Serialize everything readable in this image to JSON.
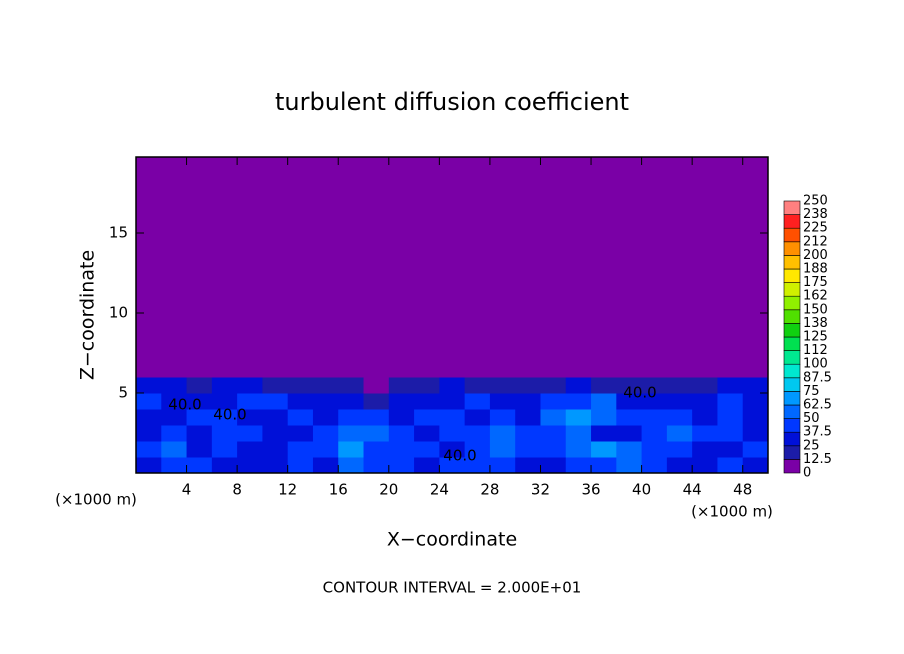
{
  "chart_data": {
    "type": "heatmap",
    "title": "turbulent diffusion coefficient",
    "x_label": "X−coordinate",
    "y_label": "Z−coordinate",
    "x_unit": "(×1000 m)",
    "y_unit": "(×1000 m)",
    "footer": "CONTOUR INTERVAL = 2.000E+01",
    "contour_labels": [
      "40.0",
      "40.0",
      "40.0",
      "40.0"
    ],
    "xlim": [
      0,
      50
    ],
    "ylim": [
      0,
      19.75
    ],
    "xticks": [
      4,
      8,
      12,
      16,
      20,
      24,
      28,
      32,
      36,
      40,
      44,
      48
    ],
    "yticks": [
      5,
      10,
      15
    ],
    "x_edges": [
      0,
      2,
      4,
      6,
      8,
      10,
      12,
      14,
      16,
      18,
      20,
      22,
      24,
      26,
      28,
      30,
      32,
      34,
      36,
      38,
      40,
      42,
      44,
      46,
      48,
      50
    ],
    "z_edges": [
      0,
      1,
      2,
      3,
      4,
      5,
      6,
      19.75
    ],
    "values": [
      [
        30,
        45,
        40,
        35,
        30,
        35,
        40,
        30,
        60,
        45,
        40,
        35,
        40,
        45,
        40,
        35,
        30,
        40,
        45,
        50,
        40,
        35,
        30,
        40,
        35
      ],
      [
        40,
        60,
        35,
        40,
        35,
        30,
        45,
        40,
        65,
        40,
        45,
        40,
        35,
        40,
        60,
        45,
        40,
        55,
        65,
        60,
        45,
        40,
        35,
        30,
        40
      ],
      [
        35,
        40,
        30,
        45,
        40,
        35,
        30,
        45,
        60,
        50,
        40,
        35,
        40,
        45,
        50,
        40,
        45,
        60,
        30,
        35,
        40,
        55,
        45,
        40,
        35
      ],
      [
        30,
        35,
        45,
        40,
        35,
        30,
        40,
        35,
        40,
        45,
        35,
        40,
        45,
        30,
        40,
        35,
        50,
        65,
        60,
        45,
        40,
        45,
        35,
        40,
        30
      ],
      [
        40,
        35,
        30,
        35,
        40,
        45,
        30,
        30,
        35,
        20,
        30,
        35,
        30,
        40,
        35,
        30,
        40,
        45,
        55,
        35,
        30,
        30,
        35,
        40,
        35
      ],
      [
        30,
        25,
        20,
        30,
        25,
        20,
        20,
        15,
        20,
        10,
        15,
        20,
        25,
        20,
        15,
        15,
        20,
        25,
        20,
        15,
        20,
        15,
        20,
        25,
        30
      ],
      [
        0,
        0,
        0,
        0,
        0,
        0,
        0,
        0,
        0,
        0,
        0,
        0,
        0,
        0,
        0,
        0,
        0,
        0,
        0,
        0,
        0,
        0,
        0,
        0,
        0
      ]
    ],
    "colorbar": {
      "levels": [
        0,
        12.5,
        25,
        37.5,
        50,
        62.5,
        75,
        87.5,
        100,
        {
          "value": 112.5,
          "label": "112"
        },
        125,
        {
          "value": 137.5,
          "label": "138"
        },
        150,
        {
          "value": 162.5,
          "label": "162"
        },
        175,
        {
          "value": 187.5,
          "label": "188"
        },
        200,
        {
          "value": 212.5,
          "label": "212"
        },
        225,
        {
          "value": 237.5,
          "label": "238"
        },
        250
      ],
      "colors": [
        "#7a00a6",
        "#1c1ca8",
        "#0010d8",
        "#0038ff",
        "#0068ff",
        "#0098ff",
        "#00c8f0",
        "#00e8d0",
        "#00e890",
        "#00e050",
        "#10d010",
        "#50e000",
        "#90f000",
        "#d0f000",
        "#ffe800",
        "#ffc000",
        "#ff9000",
        "#ff5000",
        "#ff2020",
        "#ff8080"
      ]
    }
  }
}
